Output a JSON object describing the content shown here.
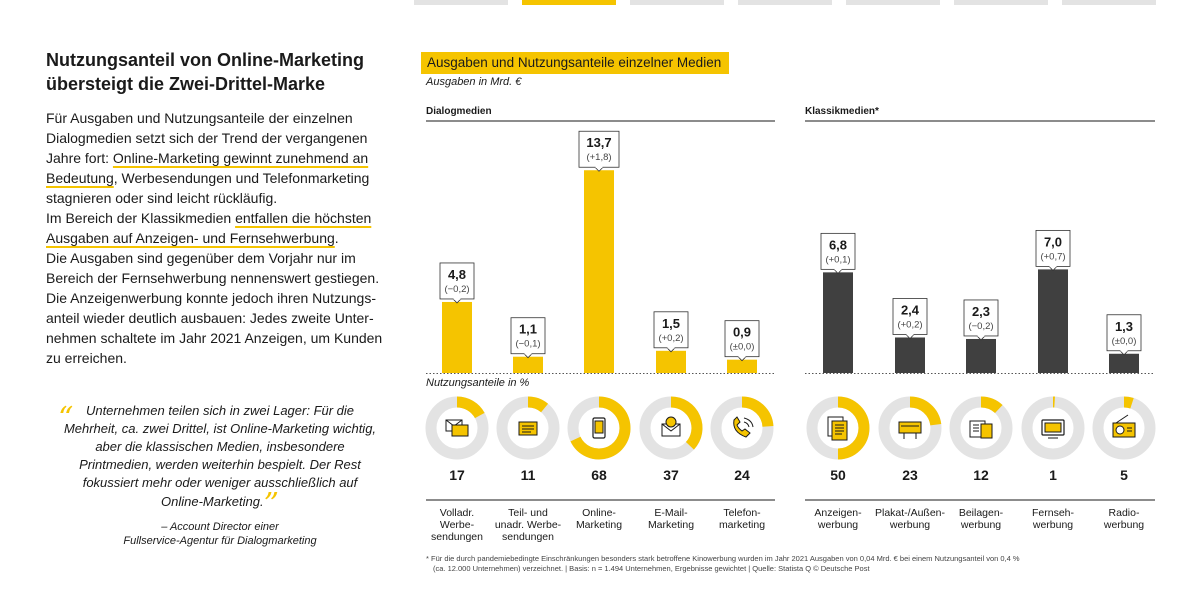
{
  "colors": {
    "accent": "#f5c400",
    "dark": "#404040",
    "ring": "#e3e3e3"
  },
  "article": {
    "headline_line1": "Nutzungsanteil von Online-Marketing",
    "headline_line2": "übersteigt die Zwei-Drittel-Marke",
    "p1_a": "Für Ausgaben und Nutzungsanteile der einzelnen Dialogmedien setzt sich der Trend der vergangenen Jahre fort: ",
    "p1_b": "Online-Marketing gewinnt zunehmend an Bedeutung",
    "p1_c": ", Werbesendungen und Telefonmarketing stagnieren oder sind leicht rückläufig.",
    "p2_a": "Im Bereich der Klassikmedien ",
    "p2_b": "entfallen die höchsten Ausgaben auf Anzeigen- und Fernsehwerbung",
    "p2_c": ".",
    "p3": "Die Ausgaben sind gegenüber dem Vorjahr nur im Bereich der Fernsehwerbung nennenswert gestiegen. Die Anzeigenwerbung konnte jedoch ihren Nutzungs­anteil wieder deutlich ausbauen: Jedes zweite Unter­nehmen schaltete im Jahr 2021 Anzeigen, um Kunden zu erreichen."
  },
  "quote": {
    "text": "Unternehmen teilen sich in zwei Lager: Für die Mehrheit, ca. zwei Drittel, ist Online-Marketing wichtig, aber die klassischen Medien, insbesondere Printmedien, werden weiterhin bespielt. Der Rest fokussiert mehr oder weniger ausschließlich auf Online-Marketing.",
    "attribution_line1": "– Account Director einer",
    "attribution_line2": "Fullservice-Agentur für Dialogmarketing"
  },
  "chart_data": {
    "type": "bar",
    "title": "Ausgaben und Nutzungsanteile einzelner Medien",
    "unit_label": "Ausgaben in Mrd. €",
    "usage_label": "Nutzungsanteile in %",
    "groups": [
      {
        "name": "Dialogmedien",
        "color": "#f5c400",
        "categories": [
          {
            "label": "Volladr. Werbe­sendungen",
            "label_lines": [
              "Volladr.",
              "Werbe-",
              "sendungen"
            ],
            "value": 4.8,
            "value_text": "4,8",
            "change": "(−0,2)",
            "usage": 17,
            "icon": "letter-icon"
          },
          {
            "label": "Teil- und unadr. Werbe­sendungen",
            "label_lines": [
              "Teil- und",
              "unadr. Werbe-",
              "sendungen"
            ],
            "value": 1.1,
            "value_text": "1,1",
            "change": "(−0,1)",
            "usage": 11,
            "icon": "envelope-icon"
          },
          {
            "label": "Online-Marketing",
            "label_lines": [
              "Online-",
              "Marketing"
            ],
            "value": 13.7,
            "value_text": "13,7",
            "change": "(+1,8)",
            "usage": 68,
            "icon": "smartphone-icon"
          },
          {
            "label": "E-Mail-Marketing",
            "label_lines": [
              "E-Mail-",
              "Marketing"
            ],
            "value": 1.5,
            "value_text": "1,5",
            "change": "(+0,2)",
            "usage": 37,
            "icon": "email-icon"
          },
          {
            "label": "Telefon­marketing",
            "label_lines": [
              "Telefon-",
              "marketing"
            ],
            "value": 0.9,
            "value_text": "0,9",
            "change": "(±0,0)",
            "usage": 24,
            "icon": "phone-icon"
          }
        ]
      },
      {
        "name": "Klassikmedien*",
        "color": "#404040",
        "categories": [
          {
            "label": "Anzeigen­werbung",
            "label_lines": [
              "Anzeigen-",
              "werbung"
            ],
            "value": 6.8,
            "value_text": "6,8",
            "change": "(+0,1)",
            "usage": 50,
            "icon": "newspaper-icon"
          },
          {
            "label": "Plakat-/Außen­werbung",
            "label_lines": [
              "Plakat-/Außen-",
              "werbung"
            ],
            "value": 2.4,
            "value_text": "2,4",
            "change": "(+0,2)",
            "usage": 23,
            "icon": "billboard-icon"
          },
          {
            "label": "Beilagen­werbung",
            "label_lines": [
              "Beilagen-",
              "werbung"
            ],
            "value": 2.3,
            "value_text": "2,3",
            "change": "(−0,2)",
            "usage": 12,
            "icon": "insert-icon"
          },
          {
            "label": "Fernseh­werbung",
            "label_lines": [
              "Fernseh-",
              "werbung"
            ],
            "value": 7.0,
            "value_text": "7,0",
            "change": "(+0,7)",
            "usage": 1,
            "icon": "tv-icon"
          },
          {
            "label": "Radio­werbung",
            "label_lines": [
              "Radio-",
              "werbung"
            ],
            "value": 1.3,
            "value_text": "1,3",
            "change": "(±0,0)",
            "usage": 5,
            "icon": "radio-icon"
          }
        ]
      }
    ],
    "footnote_line1": "* Für die durch pandemiebedingte Einschränkungen besonders stark betroffene Kinowerbung wurden im Jahr 2021 Ausgaben von 0,04 Mrd. € bei einem Nutzungsanteil von 0,4 %",
    "footnote_line2": "(ca. 12.000 Unternehmen) verzeichnet. | Basis: n = 1.494 Unternehmen, Ergebnisse gewichtet | Quelle: Statista Q © Deutsche Post"
  }
}
